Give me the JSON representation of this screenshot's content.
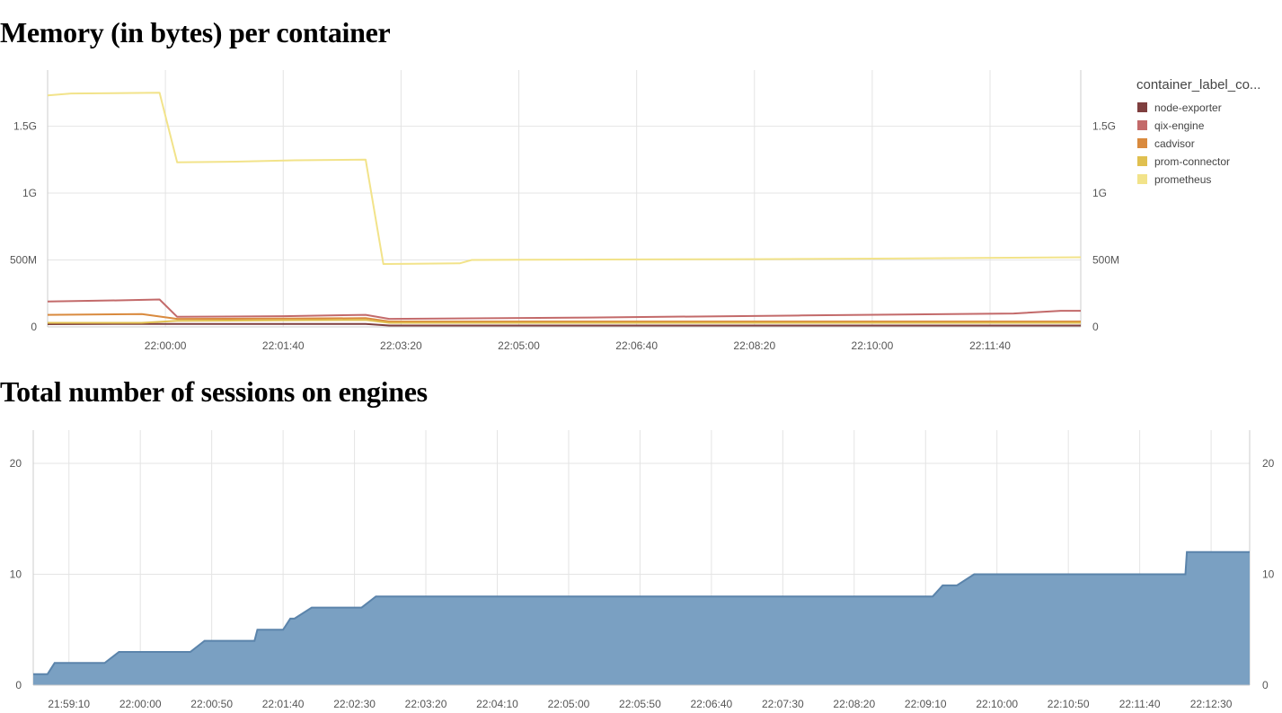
{
  "titles": {
    "memory": "Memory (in bytes) per container",
    "sessions": "Total number of sessions on engines"
  },
  "chart_data": [
    {
      "type": "line",
      "title": "Memory (in bytes) per container",
      "legend_title": "container_label_co...",
      "legend_position": "right",
      "grid": true,
      "x_tick_labels": [
        "22:00:00",
        "22:01:40",
        "22:03:20",
        "22:05:00",
        "22:06:40",
        "22:08:20",
        "22:10:00",
        "22:11:40"
      ],
      "x_ticks": [
        "22:00:00",
        "22:01:40",
        "22:03:20",
        "22:05:00",
        "22:06:40",
        "22:08:20",
        "22:10:00",
        "22:11:40"
      ],
      "x_range": [
        "21:58:20",
        "22:12:57"
      ],
      "y_tick_labels": [
        "0",
        "500M",
        "1G",
        "1.5G"
      ],
      "y_ticks": [
        0,
        500000000,
        1000000000,
        1500000000
      ],
      "ylim": [
        0,
        1920000000
      ],
      "series": [
        {
          "name": "node-exporter",
          "color": "#7f3f3f",
          "x": [
            "21:58:20",
            "21:59:40",
            "22:00:00",
            "22:01:40",
            "22:02:50",
            "22:03:10",
            "22:06:00",
            "22:12:57"
          ],
          "y": [
            20000000,
            22000000,
            22000000,
            22000000,
            22000000,
            10000000,
            10000000,
            10000000
          ]
        },
        {
          "name": "qix-engine",
          "color": "#c36a6a",
          "x": [
            "21:58:20",
            "21:59:20",
            "21:59:55",
            "22:00:10",
            "22:01:40",
            "22:02:50",
            "22:03:10",
            "22:06:00",
            "22:09:00",
            "22:12:00",
            "22:12:40",
            "22:12:57"
          ],
          "y": [
            190000000,
            198000000,
            205000000,
            75000000,
            80000000,
            90000000,
            60000000,
            70000000,
            85000000,
            100000000,
            120000000,
            120000000
          ]
        },
        {
          "name": "cadvisor",
          "color": "#d98a3e",
          "x": [
            "21:58:20",
            "21:59:40",
            "22:00:10",
            "22:01:40",
            "22:02:50",
            "22:03:10",
            "22:06:00",
            "22:12:57"
          ],
          "y": [
            90000000,
            95000000,
            60000000,
            62000000,
            65000000,
            40000000,
            40000000,
            40000000
          ]
        },
        {
          "name": "prom-connector",
          "color": "#e0c050",
          "x": [
            "21:58:20",
            "21:59:40",
            "22:00:10",
            "22:01:40",
            "22:02:50",
            "22:03:10",
            "22:06:00",
            "22:12:57"
          ],
          "y": [
            30000000,
            30000000,
            45000000,
            50000000,
            52000000,
            30000000,
            30000000,
            30000000
          ]
        },
        {
          "name": "prometheus",
          "color": "#f2e38a",
          "x": [
            "21:58:20",
            "21:58:40",
            "21:59:55",
            "22:00:10",
            "22:01:00",
            "22:01:50",
            "22:02:50",
            "22:03:05",
            "22:03:30",
            "22:04:10",
            "22:04:20",
            "22:05:00",
            "22:06:40",
            "22:08:20",
            "22:10:00",
            "22:12:57"
          ],
          "y": [
            1730000000,
            1745000000,
            1750000000,
            1230000000,
            1235000000,
            1245000000,
            1250000000,
            470000000,
            472000000,
            475000000,
            500000000,
            502000000,
            504000000,
            506000000,
            510000000,
            520000000
          ]
        }
      ]
    },
    {
      "type": "area",
      "title": "Total number of sessions on engines",
      "grid": true,
      "x_tick_labels": [
        "21:59:10",
        "22:00:00",
        "22:00:50",
        "22:01:40",
        "22:02:30",
        "22:03:20",
        "22:04:10",
        "22:05:00",
        "22:05:50",
        "22:06:40",
        "22:07:30",
        "22:08:20",
        "22:09:10",
        "22:10:00",
        "22:10:50",
        "22:11:40",
        "22:12:30"
      ],
      "x_ticks": [
        "21:59:10",
        "22:00:00",
        "22:00:50",
        "22:01:40",
        "22:02:30",
        "22:03:20",
        "22:04:10",
        "22:05:00",
        "22:05:50",
        "22:06:40",
        "22:07:30",
        "22:08:20",
        "22:09:10",
        "22:10:00",
        "22:10:50",
        "22:11:40",
        "22:12:30"
      ],
      "x_range": [
        "21:58:45",
        "22:12:57"
      ],
      "y_tick_labels": [
        "0",
        "10",
        "20"
      ],
      "y_ticks": [
        0,
        10,
        20
      ],
      "ylim": [
        0,
        23
      ],
      "color": "#7aa0c2",
      "x": [
        "21:58:45",
        "21:58:55",
        "21:59:00",
        "21:59:35",
        "21:59:45",
        "22:00:35",
        "22:00:45",
        "22:01:20",
        "22:01:22",
        "22:01:40",
        "22:01:45",
        "22:01:48",
        "22:02:00",
        "22:02:35",
        "22:02:45",
        "22:03:10",
        "22:12:12",
        "22:12:13",
        "22:12:57"
      ],
      "y": [
        1,
        1,
        2,
        2,
        3,
        3,
        4,
        4,
        5,
        5,
        6,
        6,
        7,
        7,
        8,
        8,
        10,
        12,
        12
      ],
      "steps": [
        [
          "21:58:45",
          1
        ],
        [
          "21:58:55",
          1
        ],
        [
          "21:59:00",
          2
        ],
        [
          "21:59:35",
          2
        ],
        [
          "21:59:45",
          3
        ],
        [
          "22:00:35",
          3
        ],
        [
          "22:00:45",
          4
        ],
        [
          "22:01:20",
          4
        ],
        [
          "22:01:22",
          5
        ],
        [
          "22:01:40",
          5
        ],
        [
          "22:01:45",
          6
        ],
        [
          "22:01:48",
          6
        ],
        [
          "22:02:00",
          7
        ],
        [
          "22:02:35",
          7
        ],
        [
          "22:02:45",
          8
        ],
        [
          "22:09:15",
          8
        ],
        [
          "22:09:22",
          9
        ],
        [
          "22:09:32",
          9
        ],
        [
          "22:09:44",
          10
        ],
        [
          "22:12:12",
          10
        ],
        [
          "22:12:13",
          12
        ],
        [
          "22:12:57",
          12
        ]
      ]
    }
  ]
}
